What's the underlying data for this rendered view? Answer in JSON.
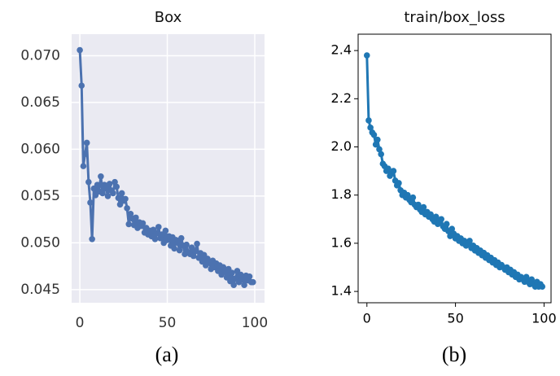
{
  "chart_data": [
    {
      "type": "line",
      "title": "Box",
      "caption": "(a)",
      "color": "#4c72b0",
      "background": "#eaeaf2",
      "grid": true,
      "x": [
        0,
        1,
        2,
        3,
        4,
        5,
        6,
        7,
        8,
        9,
        10,
        11,
        12,
        13,
        14,
        15,
        16,
        17,
        18,
        19,
        20,
        21,
        22,
        23,
        24,
        25,
        26,
        27,
        28,
        29,
        30,
        31,
        32,
        33,
        34,
        35,
        36,
        37,
        38,
        39,
        40,
        41,
        42,
        43,
        44,
        45,
        46,
        47,
        48,
        49,
        50,
        51,
        52,
        53,
        54,
        55,
        56,
        57,
        58,
        59,
        60,
        61,
        62,
        63,
        64,
        65,
        66,
        67,
        68,
        69,
        70,
        71,
        72,
        73,
        74,
        75,
        76,
        77,
        78,
        79,
        80,
        81,
        82,
        83,
        84,
        85,
        86,
        87,
        88,
        89,
        90,
        91,
        92,
        93,
        94,
        95,
        96,
        97,
        98,
        99
      ],
      "values": [
        0.0706,
        0.0668,
        0.0582,
        0.0595,
        0.0607,
        0.0565,
        0.0543,
        0.0504,
        0.0558,
        0.0551,
        0.0562,
        0.0555,
        0.0571,
        0.0553,
        0.0562,
        0.0558,
        0.055,
        0.0563,
        0.0556,
        0.0553,
        0.0565,
        0.056,
        0.0548,
        0.0541,
        0.0553,
        0.0545,
        0.0547,
        0.0537,
        0.052,
        0.0531,
        0.0526,
        0.0519,
        0.0527,
        0.0516,
        0.0522,
        0.0518,
        0.0521,
        0.0511,
        0.0516,
        0.0509,
        0.0513,
        0.0507,
        0.0514,
        0.0504,
        0.051,
        0.0517,
        0.0505,
        0.0509,
        0.05,
        0.0513,
        0.0503,
        0.0507,
        0.0497,
        0.0506,
        0.0494,
        0.0503,
        0.05,
        0.0492,
        0.0505,
        0.0497,
        0.0488,
        0.0498,
        0.049,
        0.0488,
        0.0495,
        0.0486,
        0.0491,
        0.0499,
        0.0484,
        0.0489,
        0.048,
        0.0487,
        0.0476,
        0.0483,
        0.0479,
        0.0472,
        0.0481,
        0.0474,
        0.0478,
        0.047,
        0.0476,
        0.0466,
        0.0474,
        0.0469,
        0.0463,
        0.0472,
        0.0459,
        0.0468,
        0.0455,
        0.0462,
        0.047,
        0.0458,
        0.0466,
        0.0461,
        0.0455,
        0.0465,
        0.046,
        0.0464,
        0.0458,
        0.0458
      ],
      "xlim": [
        -4.7,
        105.6
      ],
      "xticks": [
        0,
        50,
        100
      ],
      "ylim": [
        0.0436,
        0.0723
      ],
      "yticks": [
        0.045,
        {
          "value": 0.05,
          "label": "0.050"
        },
        0.055,
        {
          "value": 0.06,
          "label": "0.060"
        },
        0.065,
        {
          "value": 0.07,
          "label": "0.070"
        }
      ]
    },
    {
      "type": "line",
      "title": "train/box_loss",
      "caption": "(b)",
      "color": "#1f77b4",
      "background": "#ffffff",
      "grid": false,
      "x": [
        0,
        1,
        2,
        3,
        4,
        5,
        6,
        7,
        8,
        9,
        10,
        11,
        12,
        13,
        14,
        15,
        16,
        17,
        18,
        19,
        20,
        21,
        22,
        23,
        24,
        25,
        26,
        27,
        28,
        29,
        30,
        31,
        32,
        33,
        34,
        35,
        36,
        37,
        38,
        39,
        40,
        41,
        42,
        43,
        44,
        45,
        46,
        47,
        48,
        49,
        50,
        51,
        52,
        53,
        54,
        55,
        56,
        57,
        58,
        59,
        60,
        61,
        62,
        63,
        64,
        65,
        66,
        67,
        68,
        69,
        70,
        71,
        72,
        73,
        74,
        75,
        76,
        77,
        78,
        79,
        80,
        81,
        82,
        83,
        84,
        85,
        86,
        87,
        88,
        89,
        90,
        91,
        92,
        93,
        94,
        95,
        96,
        97,
        98,
        99
      ],
      "values": [
        2.38,
        2.11,
        2.08,
        2.06,
        2.05,
        2.01,
        2.03,
        1.99,
        1.97,
        1.93,
        1.92,
        1.9,
        1.91,
        1.88,
        1.89,
        1.9,
        1.86,
        1.84,
        1.85,
        1.82,
        1.8,
        1.81,
        1.79,
        1.8,
        1.78,
        1.77,
        1.79,
        1.76,
        1.75,
        1.76,
        1.74,
        1.73,
        1.75,
        1.72,
        1.73,
        1.71,
        1.72,
        1.7,
        1.69,
        1.71,
        1.68,
        1.69,
        1.7,
        1.67,
        1.66,
        1.68,
        1.65,
        1.63,
        1.66,
        1.64,
        1.62,
        1.63,
        1.61,
        1.62,
        1.6,
        1.61,
        1.59,
        1.6,
        1.61,
        1.58,
        1.59,
        1.57,
        1.58,
        1.56,
        1.57,
        1.55,
        1.56,
        1.54,
        1.55,
        1.53,
        1.54,
        1.52,
        1.53,
        1.51,
        1.52,
        1.5,
        1.51,
        1.5,
        1.49,
        1.5,
        1.48,
        1.49,
        1.47,
        1.48,
        1.46,
        1.47,
        1.45,
        1.46,
        1.45,
        1.44,
        1.46,
        1.44,
        1.43,
        1.45,
        1.43,
        1.42,
        1.44,
        1.42,
        1.43,
        1.42
      ],
      "xlim": [
        -4.95,
        103.95
      ],
      "xticks": [
        0,
        50,
        100
      ],
      "ylim": [
        1.353,
        2.468
      ],
      "yticks": [
        1.4,
        1.6,
        1.8,
        {
          "value": 2,
          "label": "2.0"
        },
        2.2,
        2.4
      ]
    }
  ]
}
